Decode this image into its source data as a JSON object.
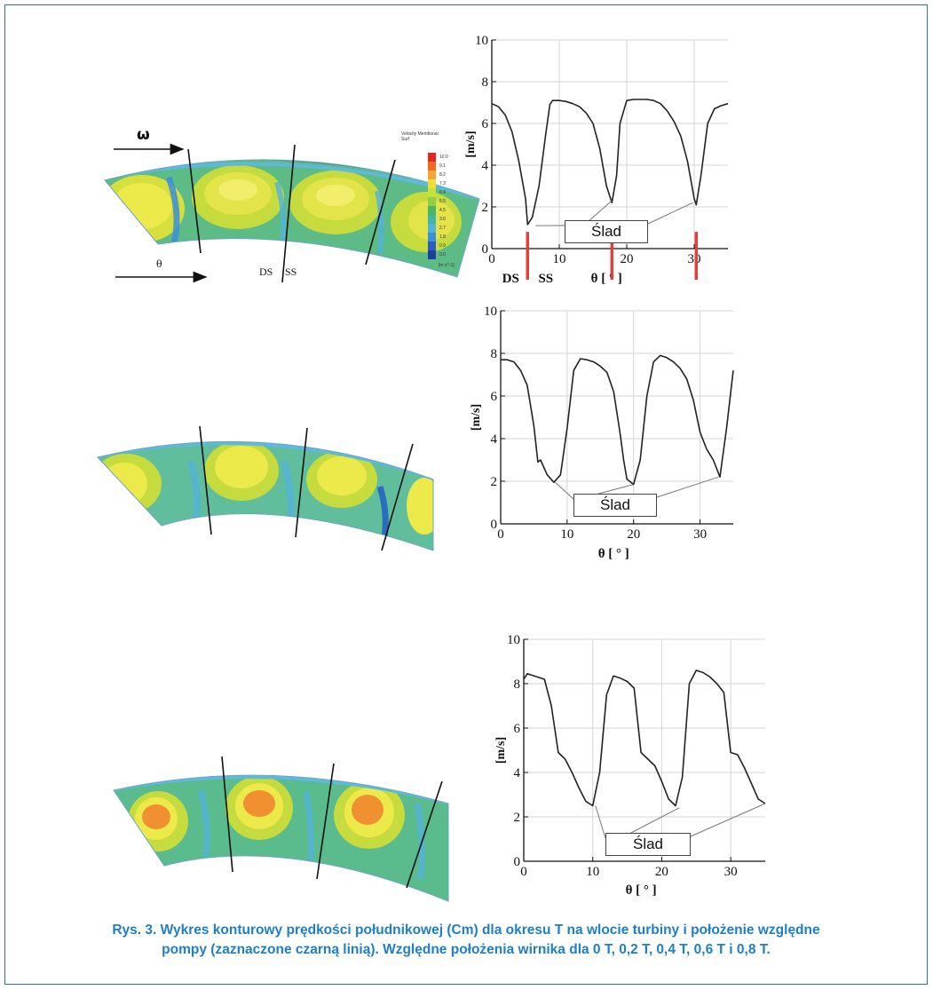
{
  "caption": {
    "line1": "Rys. 3. Wykres konturowy prędkości południkowej (Cm) dla okresu T na wlocie turbiny i położenie względne",
    "line2": "pompy (zaznaczone czarną linią). Względne położenia wirnika dla 0 T, 0,2 T, 0,4 T, 0,6 T i 0,8 T."
  },
  "contour_panels": [
    {
      "omega_label": "ω",
      "theta_label": "θ",
      "ds_label": "DS",
      "ss_label": "SS",
      "legend_title": "Velocity Meridional\nSurf",
      "legend_unit": "[m s^-1]",
      "legend_ticks": [
        "10.0",
        "9.1",
        "8.2",
        "7.3",
        "6.4",
        "5.5",
        "4.5",
        "3.6",
        "2.7",
        "1.8",
        "0.9",
        "0.0"
      ]
    },
    {},
    {}
  ],
  "colors": {
    "frame": "#2f6fa5",
    "caption": "#1f7fc4",
    "wake_marker": "#e0413a",
    "curve": "#222222",
    "grid": "#d6d6d6"
  },
  "chart_data": [
    {
      "type": "line",
      "ylabel": "[m/s]",
      "xlabel": "θ [ ° ]",
      "xlim": [
        0,
        35
      ],
      "ylim": [
        0,
        10
      ],
      "xticks": [
        0,
        10,
        20,
        30
      ],
      "yticks": [
        0,
        2,
        4,
        6,
        8,
        10
      ],
      "grid": true,
      "annotation": "Ślad",
      "extra_labels": {
        "ds": "DS",
        "ss": "SS"
      },
      "wake_markers_x": [
        5.3,
        17.8,
        30.3
      ],
      "x": [
        0,
        1,
        2,
        3,
        4,
        5,
        5.3,
        6,
        7,
        8,
        8.6,
        9,
        10,
        11,
        12,
        13,
        14,
        15,
        16,
        17,
        17.8,
        18.5,
        19,
        20,
        21,
        22,
        23,
        24,
        25,
        26,
        27,
        28,
        29,
        30,
        30.3,
        31,
        32,
        33,
        34,
        35
      ],
      "y": [
        6.95,
        6.8,
        6.4,
        5.6,
        4.2,
        2.4,
        1.15,
        1.5,
        3.0,
        5.5,
        6.9,
        7.1,
        7.1,
        7.05,
        6.95,
        6.8,
        6.5,
        6.0,
        4.8,
        3.0,
        2.2,
        3.5,
        6.0,
        7.1,
        7.15,
        7.15,
        7.15,
        7.1,
        6.95,
        6.6,
        6.1,
        5.4,
        4.2,
        2.4,
        2.1,
        3.5,
        6.0,
        6.7,
        6.85,
        6.95
      ],
      "pointer_points": [
        [
          6.5,
          1.1
        ],
        [
          17.8,
          2.3
        ],
        [
          29.8,
          2.2
        ]
      ]
    },
    {
      "type": "line",
      "ylabel": "[m/s]",
      "xlabel": "θ [ ° ]",
      "xlim": [
        0,
        35
      ],
      "ylim": [
        0,
        10
      ],
      "xticks": [
        0,
        10,
        20,
        30
      ],
      "yticks": [
        0,
        2,
        4,
        6,
        8,
        10
      ],
      "grid": true,
      "annotation": "Ślad",
      "x": [
        0,
        1,
        2,
        3,
        4,
        5,
        5.6,
        6,
        7,
        8,
        9,
        10,
        11,
        12,
        13,
        14,
        15,
        16,
        17,
        18,
        18.5,
        19,
        20,
        21,
        22,
        23,
        24,
        25,
        26,
        27,
        28,
        29,
        30,
        31,
        32,
        33,
        34,
        35
      ],
      "y": [
        7.7,
        7.7,
        7.6,
        7.2,
        6.5,
        4.6,
        2.9,
        3.0,
        2.3,
        1.95,
        2.3,
        4.5,
        7.2,
        7.75,
        7.7,
        7.6,
        7.4,
        7.1,
        6.2,
        4.2,
        3.0,
        2.1,
        1.85,
        3.0,
        6.0,
        7.6,
        7.9,
        7.8,
        7.6,
        7.3,
        6.8,
        5.8,
        4.3,
        3.5,
        3.0,
        2.2,
        4.5,
        7.2
      ],
      "pointer_points": [
        [
          8.2,
          1.95
        ],
        [
          20.0,
          1.85
        ],
        [
          32.8,
          2.2
        ]
      ]
    },
    {
      "type": "line",
      "ylabel": "[m/s]",
      "xlabel": "θ [ ° ]",
      "xlim": [
        0,
        35
      ],
      "ylim": [
        0,
        10
      ],
      "xticks": [
        0,
        10,
        20,
        30
      ],
      "yticks": [
        0,
        2,
        4,
        6,
        8,
        10
      ],
      "grid": true,
      "annotation": "Ślad",
      "x": [
        0,
        0.5,
        1,
        2,
        3,
        4,
        5,
        6,
        7,
        8,
        9,
        10,
        11,
        12,
        13,
        14,
        15,
        16,
        17,
        18,
        19,
        20,
        21,
        22,
        23,
        24,
        25,
        26,
        27,
        28,
        29,
        30,
        31,
        32,
        33,
        34,
        35
      ],
      "y": [
        8.2,
        8.45,
        8.4,
        8.3,
        8.2,
        7.0,
        4.9,
        4.6,
        4.0,
        3.3,
        2.7,
        2.5,
        4.0,
        7.5,
        8.35,
        8.25,
        8.1,
        7.8,
        4.9,
        4.6,
        4.3,
        3.6,
        2.8,
        2.5,
        3.8,
        8.0,
        8.6,
        8.5,
        8.3,
        8.0,
        7.6,
        4.9,
        4.8,
        4.2,
        3.5,
        2.8,
        2.6
      ],
      "pointer_points": [
        [
          10.4,
          2.5
        ],
        [
          22.5,
          2.4
        ],
        [
          35,
          2.6
        ]
      ]
    }
  ]
}
